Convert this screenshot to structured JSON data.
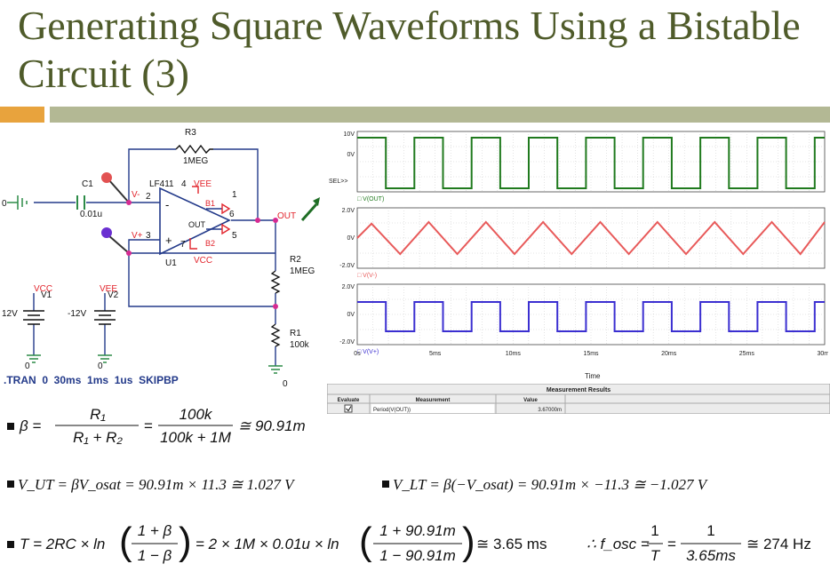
{
  "slide": {
    "title": "Generating Square Waveforms Using a Bistable Circuit (3)"
  },
  "schematic": {
    "r3_name": "R3",
    "r3_value": "1MEG",
    "c1_name": "C1",
    "c1_value": "0.01u",
    "opamp_name": "LF411",
    "opamp_unit": "U1",
    "opamp_out_label": "OUT",
    "vee_label": "VEE",
    "vcc_label": "VCC",
    "vminus_label": "V-",
    "vplus_label": "V+",
    "b1_label": "B1",
    "b2_label": "B2",
    "pin2": "2",
    "pin3": "3",
    "pin4": "4",
    "pin6": "6",
    "pin7": "7",
    "pin1": "1",
    "pin5": "5",
    "out_label": "OUT",
    "r2_name": "R2",
    "r2_value": "1MEG",
    "r1_name": "R1",
    "r1_value": "100k",
    "vcc_src_label": "VCC",
    "vcc_src_name": "V1",
    "vcc_src_value": "12V",
    "vee_src_label": "VEE",
    "vee_src_name": "V2",
    "vee_src_value": "-12V",
    "gnd_label": "0",
    "tran_line": ".TRAN  0  30ms  1ms  1us  SKIPBP"
  },
  "scope": {
    "x_ticks": [
      "0s",
      "5ms",
      "10ms",
      "15ms",
      "20ms",
      "25ms",
      "30ms"
    ],
    "x_label": "Time",
    "sel_label": "SEL>>",
    "panels": [
      {
        "color": "#207a1e",
        "ticks": [
          "10V",
          "0V"
        ],
        "legend": "V(OUT)"
      },
      {
        "color": "#e85a5a",
        "ticks": [
          "2.0V",
          "0V",
          "-2.0V"
        ],
        "legend": "V(V-)"
      },
      {
        "color": "#3b2fd1",
        "ticks": [
          "2.0V",
          "0V",
          "-2.0V"
        ],
        "legend": "V(V+)"
      }
    ]
  },
  "measurement": {
    "title": "Measurement Results",
    "headers": [
      "Evaluate",
      "Measurement",
      "Value"
    ],
    "rows": [
      {
        "evaluate": true,
        "measurement": "Period(V(OUT))",
        "value": "3.67000m"
      }
    ]
  },
  "formulas": {
    "beta_lhs": "β =",
    "beta_num1": "R₁",
    "beta_den1": "R₁ + R₂",
    "beta_num2": "100k",
    "beta_den2": "100k + 1M",
    "beta_result": "≅ 90.91m",
    "vut": "V_UT = βV_osat = 90.91m × 11.3 ≅ 1.027 V",
    "vlt": "V_LT = β(−V_osat) = 90.91m × −11.3 ≅ −1.027 V",
    "period_lhs": "T = 2RC × ln",
    "period_num1": "1 + β",
    "period_den1": "1 − β",
    "period_mid": "= 2 × 1M × 0.01u × ln",
    "period_num2": "1 + 90.91m",
    "period_den2": "1 − 90.91m",
    "period_result": "≅ 3.65 ms",
    "fosc_lhs": "∴ f_osc =",
    "fosc_num1": "1",
    "fosc_den1": "T",
    "fosc_num2": "1",
    "fosc_den2": "3.65ms",
    "fosc_result": "≅ 274 Hz"
  }
}
